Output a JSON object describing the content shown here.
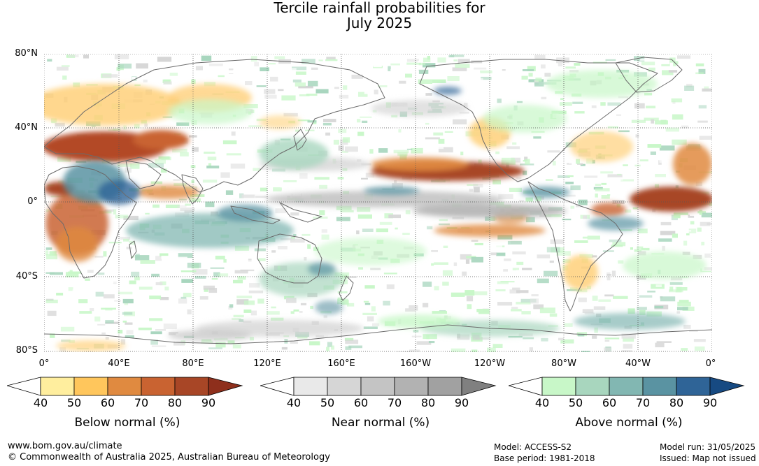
{
  "title": {
    "line1": "Tercile rainfall probabilities for",
    "line2": "July 2025"
  },
  "map": {
    "lat_labels": [
      "80°N",
      "40°N",
      "0°",
      "40°S",
      "80°S"
    ],
    "lon_labels": [
      "0°",
      "40°E",
      "80°E",
      "120°E",
      "160°E",
      "160°W",
      "120°W",
      "80°W",
      "40°W",
      "0°"
    ],
    "category_colors": {
      "below": "#c96331",
      "near": "#bdbdbd",
      "above": "#7fb8b0"
    }
  },
  "legends": [
    {
      "name": "below",
      "title": "Below normal (%)",
      "ticks": [
        "40",
        "50",
        "60",
        "70",
        "80",
        "90"
      ],
      "colors": [
        "#ffffff",
        "#ffee9e",
        "#ffc65c",
        "#e08a40",
        "#c96331",
        "#a84626",
        "#8e2f1c"
      ]
    },
    {
      "name": "near",
      "title": "Near normal (%)",
      "ticks": [
        "40",
        "50",
        "60",
        "70",
        "80",
        "90"
      ],
      "colors": [
        "#ffffff",
        "#e9e9e9",
        "#d6d6d6",
        "#c4c4c4",
        "#b2b2b2",
        "#a1a1a1",
        "#808080"
      ]
    },
    {
      "name": "above",
      "title": "Above normal (%)",
      "ticks": [
        "40",
        "50",
        "60",
        "70",
        "80",
        "90"
      ],
      "colors": [
        "#ffffff",
        "#c8f7c8",
        "#a8d6be",
        "#82b7b2",
        "#5a93a2",
        "#2f6497",
        "#174a82"
      ]
    }
  ],
  "footer": {
    "website": "www.bom.gov.au/climate",
    "copyright": "© Commonwealth of Australia 2025, Australian Bureau of Meteorology",
    "model": "Model: ACCESS-S2",
    "base_period": "Base period: 1981-2018",
    "model_run": "Model run: 31/05/2025",
    "issued": "Issued: Map not issued"
  }
}
